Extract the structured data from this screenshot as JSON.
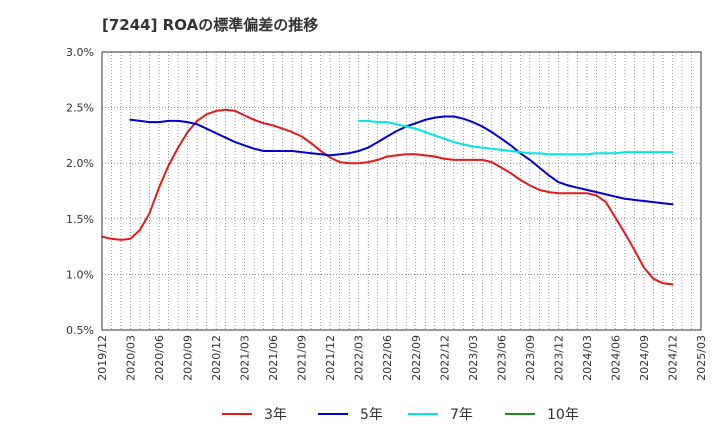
{
  "chart_data": {
    "type": "line",
    "title": "[7244]  ROAの標準偏差の推移",
    "xlabel": "",
    "ylabel": "",
    "ylim": [
      0.5,
      3.0
    ],
    "y_ticks": [
      "3.0%",
      "2.5%",
      "2.0%",
      "1.5%",
      "1.0%",
      "0.5%"
    ],
    "y_tick_values": [
      3.0,
      2.5,
      2.0,
      1.5,
      1.0,
      0.5
    ],
    "x_ticks": [
      "2019/12",
      "2020/03",
      "2020/06",
      "2020/09",
      "2020/12",
      "2021/03",
      "2021/06",
      "2021/09",
      "2021/12",
      "2022/03",
      "2022/06",
      "2022/09",
      "2022/12",
      "2023/03",
      "2023/06",
      "2023/09",
      "2023/12",
      "2024/03",
      "2024/06",
      "2024/09",
      "2024/12",
      "2025/03"
    ],
    "grid": true,
    "legend_position": "bottom",
    "series": [
      {
        "name": "3年",
        "color": "#e41a1c",
        "points": [
          [
            "2019/12",
            1.34
          ],
          [
            "2020/01",
            1.32
          ],
          [
            "2020/02",
            1.31
          ],
          [
            "2020/03",
            1.32
          ],
          [
            "2020/04",
            1.4
          ],
          [
            "2020/05",
            1.55
          ],
          [
            "2020/06",
            1.78
          ],
          [
            "2020/07",
            1.98
          ],
          [
            "2020/08",
            2.14
          ],
          [
            "2020/09",
            2.28
          ],
          [
            "2020/10",
            2.38
          ],
          [
            "2020/11",
            2.44
          ],
          [
            "2020/12",
            2.47
          ],
          [
            "2021/01",
            2.48
          ],
          [
            "2021/02",
            2.47
          ],
          [
            "2021/03",
            2.43
          ],
          [
            "2021/04",
            2.39
          ],
          [
            "2021/05",
            2.36
          ],
          [
            "2021/06",
            2.34
          ],
          [
            "2021/07",
            2.31
          ],
          [
            "2021/08",
            2.28
          ],
          [
            "2021/09",
            2.24
          ],
          [
            "2021/10",
            2.18
          ],
          [
            "2021/11",
            2.11
          ],
          [
            "2021/12",
            2.05
          ],
          [
            "2022/01",
            2.01
          ],
          [
            "2022/02",
            2.0
          ],
          [
            "2022/03",
            2.0
          ],
          [
            "2022/04",
            2.01
          ],
          [
            "2022/05",
            2.03
          ],
          [
            "2022/06",
            2.06
          ],
          [
            "2022/07",
            2.07
          ],
          [
            "2022/08",
            2.08
          ],
          [
            "2022/09",
            2.08
          ],
          [
            "2022/10",
            2.07
          ],
          [
            "2022/11",
            2.06
          ],
          [
            "2022/12",
            2.04
          ],
          [
            "2023/01",
            2.03
          ],
          [
            "2023/02",
            2.03
          ],
          [
            "2023/03",
            2.03
          ],
          [
            "2023/04",
            2.03
          ],
          [
            "2023/05",
            2.01
          ],
          [
            "2023/06",
            1.96
          ],
          [
            "2023/07",
            1.91
          ],
          [
            "2023/08",
            1.85
          ],
          [
            "2023/09",
            1.8
          ],
          [
            "2023/10",
            1.76
          ],
          [
            "2023/11",
            1.74
          ],
          [
            "2023/12",
            1.73
          ],
          [
            "2024/01",
            1.73
          ],
          [
            "2024/02",
            1.73
          ],
          [
            "2024/03",
            1.73
          ],
          [
            "2024/04",
            1.71
          ],
          [
            "2024/05",
            1.65
          ],
          [
            "2024/06",
            1.51
          ],
          [
            "2024/07",
            1.37
          ],
          [
            "2024/08",
            1.22
          ],
          [
            "2024/09",
            1.06
          ],
          [
            "2024/10",
            0.96
          ],
          [
            "2024/11",
            0.92
          ],
          [
            "2024/12",
            0.91
          ]
        ]
      },
      {
        "name": "5年",
        "color": "#0000cc",
        "points": [
          [
            "2020/03",
            2.39
          ],
          [
            "2020/04",
            2.38
          ],
          [
            "2020/05",
            2.37
          ],
          [
            "2020/06",
            2.37
          ],
          [
            "2020/07",
            2.38
          ],
          [
            "2020/08",
            2.38
          ],
          [
            "2020/09",
            2.37
          ],
          [
            "2020/10",
            2.35
          ],
          [
            "2020/11",
            2.31
          ],
          [
            "2020/12",
            2.27
          ],
          [
            "2021/01",
            2.23
          ],
          [
            "2021/02",
            2.19
          ],
          [
            "2021/03",
            2.16
          ],
          [
            "2021/04",
            2.13
          ],
          [
            "2021/05",
            2.11
          ],
          [
            "2021/06",
            2.11
          ],
          [
            "2021/07",
            2.11
          ],
          [
            "2021/08",
            2.11
          ],
          [
            "2021/09",
            2.1
          ],
          [
            "2021/10",
            2.09
          ],
          [
            "2021/11",
            2.08
          ],
          [
            "2021/12",
            2.07
          ],
          [
            "2022/01",
            2.08
          ],
          [
            "2022/02",
            2.09
          ],
          [
            "2022/03",
            2.11
          ],
          [
            "2022/04",
            2.14
          ],
          [
            "2022/05",
            2.19
          ],
          [
            "2022/06",
            2.24
          ],
          [
            "2022/07",
            2.29
          ],
          [
            "2022/08",
            2.33
          ],
          [
            "2022/09",
            2.36
          ],
          [
            "2022/10",
            2.39
          ],
          [
            "2022/11",
            2.41
          ],
          [
            "2022/12",
            2.42
          ],
          [
            "2023/01",
            2.42
          ],
          [
            "2023/02",
            2.4
          ],
          [
            "2023/03",
            2.37
          ],
          [
            "2023/04",
            2.33
          ],
          [
            "2023/05",
            2.28
          ],
          [
            "2023/06",
            2.22
          ],
          [
            "2023/07",
            2.16
          ],
          [
            "2023/08",
            2.09
          ],
          [
            "2023/09",
            2.03
          ],
          [
            "2023/10",
            1.96
          ],
          [
            "2023/11",
            1.89
          ],
          [
            "2023/12",
            1.83
          ],
          [
            "2024/01",
            1.8
          ],
          [
            "2024/02",
            1.78
          ],
          [
            "2024/03",
            1.76
          ],
          [
            "2024/04",
            1.74
          ],
          [
            "2024/05",
            1.72
          ],
          [
            "2024/06",
            1.7
          ],
          [
            "2024/07",
            1.68
          ],
          [
            "2024/08",
            1.67
          ],
          [
            "2024/09",
            1.66
          ],
          [
            "2024/10",
            1.65
          ],
          [
            "2024/11",
            1.64
          ],
          [
            "2024/12",
            1.63
          ]
        ]
      },
      {
        "name": "7年",
        "color": "#00e5e5",
        "points": [
          [
            "2022/03",
            2.38
          ],
          [
            "2022/04",
            2.38
          ],
          [
            "2022/05",
            2.37
          ],
          [
            "2022/06",
            2.37
          ],
          [
            "2022/07",
            2.35
          ],
          [
            "2022/08",
            2.33
          ],
          [
            "2022/09",
            2.31
          ],
          [
            "2022/10",
            2.28
          ],
          [
            "2022/11",
            2.25
          ],
          [
            "2022/12",
            2.22
          ],
          [
            "2023/01",
            2.19
          ],
          [
            "2023/02",
            2.17
          ],
          [
            "2023/03",
            2.15
          ],
          [
            "2023/04",
            2.14
          ],
          [
            "2023/05",
            2.13
          ],
          [
            "2023/06",
            2.12
          ],
          [
            "2023/07",
            2.11
          ],
          [
            "2023/08",
            2.1
          ],
          [
            "2023/09",
            2.09
          ],
          [
            "2023/10",
            2.09
          ],
          [
            "2023/11",
            2.08
          ],
          [
            "2023/12",
            2.08
          ],
          [
            "2024/01",
            2.08
          ],
          [
            "2024/02",
            2.08
          ],
          [
            "2024/03",
            2.08
          ],
          [
            "2024/04",
            2.09
          ],
          [
            "2024/05",
            2.09
          ],
          [
            "2024/06",
            2.09
          ],
          [
            "2024/07",
            2.1
          ],
          [
            "2024/08",
            2.1
          ],
          [
            "2024/09",
            2.1
          ],
          [
            "2024/10",
            2.1
          ],
          [
            "2024/11",
            2.1
          ],
          [
            "2024/12",
            2.1
          ]
        ]
      },
      {
        "name": "10年",
        "color": "#228b22",
        "points": []
      }
    ]
  }
}
